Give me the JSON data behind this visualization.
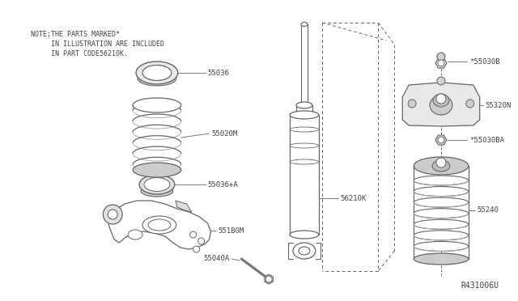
{
  "background_color": "#ffffff",
  "line_color": "#666666",
  "text_color": "#444444",
  "note_lines": [
    "NOTE;THE PARTS MARKED*",
    "     IN ILLUSTRATION ARE INCLUDED",
    "     IN PART CODE56210K."
  ],
  "diagram_ref": "R431006U",
  "figsize": [
    6.4,
    3.72
  ],
  "dpi": 100
}
